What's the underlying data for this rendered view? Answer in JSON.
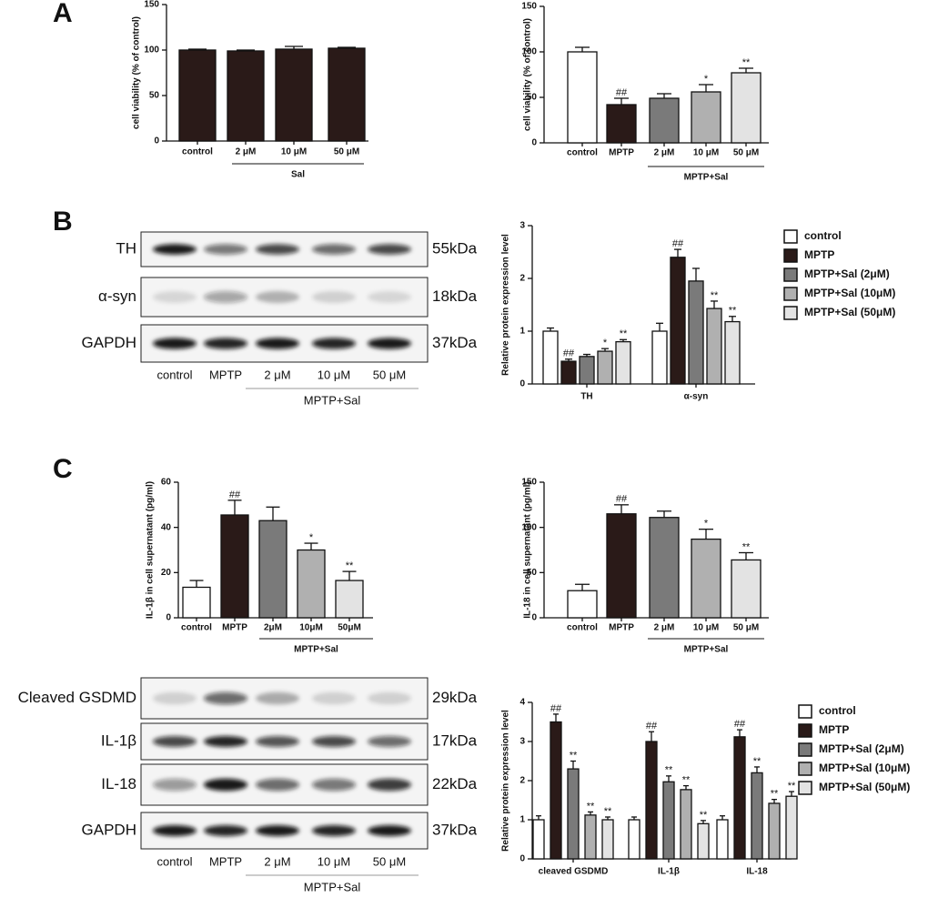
{
  "panels": [
    "A",
    "B",
    "C"
  ],
  "chart_data": [
    {
      "type": "bar",
      "ylabel": "cell viability (% of control)",
      "categories": [
        "control",
        "2 μM",
        "10 μM",
        "50 μM"
      ],
      "values": [
        100,
        99,
        101,
        102
      ],
      "errors": [
        1,
        1,
        3,
        1
      ],
      "color": "#2a1a18",
      "group_label": "Sal",
      "ylim": [
        0,
        150
      ],
      "yticks": [
        0,
        50,
        100,
        150
      ]
    },
    {
      "type": "bar",
      "ylabel": "cell viability (% of control)",
      "categories": [
        "control",
        "MPTP",
        "2 μM",
        "10 μM",
        "50 μM"
      ],
      "values": [
        100,
        42,
        49,
        56,
        77
      ],
      "errors": [
        5,
        7,
        5,
        8,
        5
      ],
      "annotations": [
        null,
        "##",
        null,
        "*",
        "**"
      ],
      "colors": [
        "#ffffff",
        "#2a1a18",
        "#7a7a7a",
        "#b0b0b0",
        "#e3e3e3"
      ],
      "group_label": "MPTP+Sal",
      "ylim": [
        0,
        150
      ],
      "yticks": [
        0,
        50,
        100,
        150
      ]
    },
    {
      "type": "bar",
      "ylabel": "Relative protein expression level",
      "categories": [
        "TH",
        "α-syn"
      ],
      "series": [
        {
          "name": "control",
          "color": "#ffffff",
          "values": [
            1.0,
            1.0
          ],
          "errors": [
            0.06,
            0.15
          ],
          "annotations": [
            null,
            null
          ]
        },
        {
          "name": "MPTP",
          "color": "#2a1a18",
          "values": [
            0.43,
            2.4
          ],
          "errors": [
            0.04,
            0.15
          ],
          "annotations": [
            "##",
            "##"
          ]
        },
        {
          "name": "MPTP+Sal (2μM)",
          "color": "#7a7a7a",
          "values": [
            0.52,
            1.95
          ],
          "errors": [
            0.04,
            0.24
          ],
          "annotations": [
            null,
            null
          ]
        },
        {
          "name": "MPTP+Sal (10μM)",
          "color": "#b0b0b0",
          "values": [
            0.62,
            1.43
          ],
          "errors": [
            0.05,
            0.14
          ],
          "annotations": [
            "*",
            "**"
          ]
        },
        {
          "name": "MPTP+Sal (50μM)",
          "color": "#e3e3e3",
          "values": [
            0.8,
            1.18
          ],
          "errors": [
            0.04,
            0.1
          ],
          "annotations": [
            "**",
            "**"
          ]
        }
      ],
      "ylim": [
        0,
        3
      ],
      "yticks": [
        0,
        1,
        2,
        3
      ],
      "legend": "right"
    },
    {
      "type": "bar",
      "ylabel": "IL-1β  in cell supernatant (pg/ml)",
      "categories": [
        "control",
        "MPTP",
        "2μM",
        "10μM",
        "50μM"
      ],
      "values": [
        13.5,
        45.5,
        43,
        30,
        16.5
      ],
      "errors": [
        3,
        6.5,
        6,
        3,
        4
      ],
      "annotations": [
        null,
        "##",
        null,
        "*",
        "**"
      ],
      "colors": [
        "#ffffff",
        "#2a1a18",
        "#7a7a7a",
        "#b0b0b0",
        "#e3e3e3"
      ],
      "group_label": "MPTP+Sal",
      "ylim": [
        0,
        60
      ],
      "yticks": [
        0,
        20,
        40,
        60
      ]
    },
    {
      "type": "bar",
      "ylabel": "IL-18 in cell supernatant (pg/ml)",
      "categories": [
        "control",
        "MPTP",
        "2 μM",
        "10 μM",
        "50 μM"
      ],
      "values": [
        30,
        115,
        111,
        87,
        64
      ],
      "errors": [
        7,
        10,
        7,
        11,
        8
      ],
      "annotations": [
        null,
        "##",
        null,
        "*",
        "**"
      ],
      "colors": [
        "#ffffff",
        "#2a1a18",
        "#7a7a7a",
        "#b0b0b0",
        "#e3e3e3"
      ],
      "group_label": "MPTP+Sal",
      "ylim": [
        0,
        150
      ],
      "yticks": [
        0,
        50,
        100,
        150
      ]
    },
    {
      "type": "bar",
      "ylabel": "Relative protein expression level",
      "categories": [
        "cleaved GSDMD",
        "IL-1β",
        "IL-18"
      ],
      "series": [
        {
          "name": "control",
          "color": "#ffffff",
          "values": [
            1.0,
            1.0,
            1.0
          ],
          "errors": [
            0.1,
            0.07,
            0.1
          ],
          "annotations": [
            null,
            null,
            null
          ]
        },
        {
          "name": "MPTP",
          "color": "#2a1a18",
          "values": [
            3.5,
            3.0,
            3.12
          ],
          "errors": [
            0.2,
            0.25,
            0.18
          ],
          "annotations": [
            "##",
            "##",
            "##"
          ]
        },
        {
          "name": "MPTP+Sal (2μM)",
          "color": "#7a7a7a",
          "values": [
            2.3,
            1.97,
            2.2
          ],
          "errors": [
            0.2,
            0.15,
            0.15
          ],
          "annotations": [
            "**",
            "**",
            "**"
          ]
        },
        {
          "name": "MPTP+Sal (10μM)",
          "color": "#b0b0b0",
          "values": [
            1.12,
            1.77,
            1.42
          ],
          "errors": [
            0.08,
            0.1,
            0.1
          ],
          "annotations": [
            "**",
            "**",
            "**"
          ]
        },
        {
          "name": "MPTP+Sal (50μM)",
          "color": "#e3e3e3",
          "values": [
            1.0,
            0.9,
            1.6
          ],
          "errors": [
            0.07,
            0.08,
            0.12
          ],
          "annotations": [
            "**",
            "**",
            "**"
          ]
        }
      ],
      "ylim": [
        0,
        4
      ],
      "yticks": [
        0,
        1,
        2,
        3,
        4
      ],
      "legend": "right"
    }
  ],
  "blots": [
    {
      "lanes": [
        "control",
        "MPTP",
        "2 μM",
        "10 μM",
        "50 μM"
      ],
      "group_label": "MPTP+Sal",
      "rows": [
        {
          "label": "TH",
          "size": "55kDa"
        },
        {
          "label": "α-syn",
          "size": "18kDa"
        },
        {
          "label": "GAPDH",
          "size": "37kDa"
        }
      ]
    },
    {
      "lanes": [
        "control",
        "MPTP",
        "2 μM",
        "10 μM",
        "50 μM"
      ],
      "group_label": "MPTP+Sal",
      "rows": [
        {
          "label": "Cleaved GSDMD",
          "size": "29kDa"
        },
        {
          "label": "IL-1β",
          "size": "17kDa"
        },
        {
          "label": "IL-18",
          "size": "22kDa"
        },
        {
          "label": "GAPDH",
          "size": "37kDa"
        }
      ]
    }
  ]
}
